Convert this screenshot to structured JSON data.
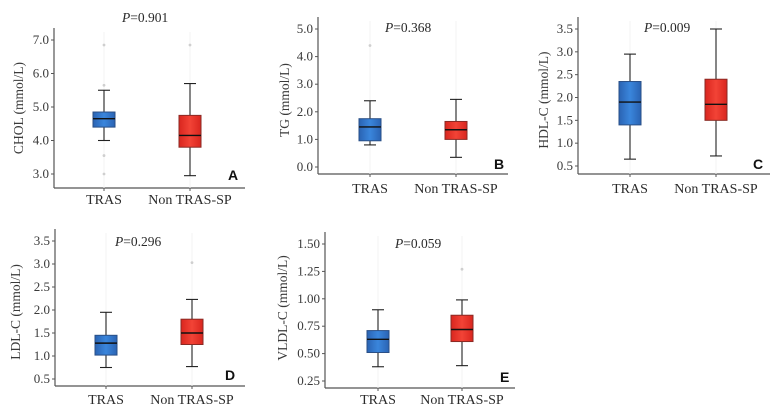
{
  "colors": {
    "TRAS": "#2f74c8",
    "Non TRAS-SP": "#e8322a",
    "outlier": "#cfcfcf",
    "axis": "#555555"
  },
  "chart_data": [
    {
      "type": "box",
      "panel": "A",
      "ylabel": "CHOL (mmol/L)",
      "annotation": "P=0.901",
      "p_value": "0.901",
      "ylim": [
        2.8,
        7.4
      ],
      "yticks": [
        3.0,
        4.0,
        5.0,
        6.0,
        7.0
      ],
      "ytick_labels": [
        "3.0",
        "4.0",
        "5.0",
        "6.0",
        "7.0"
      ],
      "categories": [
        "TRAS",
        "Non TRAS-SP"
      ],
      "series": [
        {
          "name": "TRAS",
          "whisker_low": 4.0,
          "q1": 4.4,
          "median": 4.65,
          "q3": 4.85,
          "whisker_high": 5.5,
          "outliers": [
            3.0,
            3.55,
            5.65,
            6.85
          ]
        },
        {
          "name": "Non TRAS-SP",
          "whisker_low": 2.95,
          "q1": 3.8,
          "median": 4.15,
          "q3": 4.75,
          "whisker_high": 5.7,
          "outliers": [
            6.85
          ]
        }
      ]
    },
    {
      "type": "box",
      "panel": "B",
      "ylabel": "TG (mmol/L)",
      "annotation": "P=0.368",
      "p_value": "0.368",
      "ylim": [
        -0.25,
        5.2
      ],
      "yticks": [
        0.0,
        1.0,
        2.0,
        3.0,
        4.0,
        5.0
      ],
      "ytick_labels": [
        "0.0",
        "1.0",
        "2.0",
        "3.0",
        "4.0",
        "5.0"
      ],
      "categories": [
        "TRAS",
        "Non TRAS-SP"
      ],
      "series": [
        {
          "name": "TRAS",
          "whisker_low": 0.8,
          "q1": 0.95,
          "median": 1.45,
          "q3": 1.75,
          "whisker_high": 2.4,
          "outliers": [
            4.4
          ]
        },
        {
          "name": "Non TRAS-SP",
          "whisker_low": 0.35,
          "q1": 1.0,
          "median": 1.35,
          "q3": 1.65,
          "whisker_high": 2.45,
          "outliers": []
        }
      ]
    },
    {
      "type": "box",
      "panel": "C",
      "ylabel": "HDL-C (mmol/L)",
      "annotation": "P=0.009",
      "p_value": "0.009",
      "ylim": [
        0.4,
        3.65
      ],
      "yticks": [
        0.5,
        1.0,
        1.5,
        2.0,
        2.5,
        3.0,
        3.5
      ],
      "ytick_labels": [
        "0.5",
        "1.0",
        "1.5",
        "2.0",
        "2.5",
        "3.0",
        "3.5"
      ],
      "categories": [
        "TRAS",
        "Non TRAS-SP"
      ],
      "series": [
        {
          "name": "TRAS",
          "whisker_low": 0.65,
          "q1": 1.4,
          "median": 1.9,
          "q3": 2.35,
          "whisker_high": 2.95,
          "outliers": []
        },
        {
          "name": "Non TRAS-SP",
          "whisker_low": 0.72,
          "q1": 1.5,
          "median": 1.85,
          "q3": 2.4,
          "whisker_high": 3.5,
          "outliers": []
        }
      ]
    },
    {
      "type": "box",
      "panel": "D",
      "ylabel": "LDL-C (mmol/L)",
      "annotation": "P=0.296",
      "p_value": "0.296",
      "ylim": [
        0.4,
        3.65
      ],
      "yticks": [
        0.5,
        1.0,
        1.5,
        2.0,
        2.5,
        3.0,
        3.5
      ],
      "ytick_labels": [
        "0.5",
        "1.0",
        "1.5",
        "2.0",
        "2.5",
        "3.0",
        "3.5"
      ],
      "categories": [
        "TRAS",
        "Non TRAS-SP"
      ],
      "series": [
        {
          "name": "TRAS",
          "whisker_low": 0.75,
          "q1": 1.02,
          "median": 1.28,
          "q3": 1.45,
          "whisker_high": 1.95,
          "outliers": []
        },
        {
          "name": "Non TRAS-SP",
          "whisker_low": 0.77,
          "q1": 1.25,
          "median": 1.5,
          "q3": 1.8,
          "whisker_high": 2.23,
          "outliers": [
            3.03
          ]
        }
      ]
    },
    {
      "type": "box",
      "panel": "E",
      "ylabel": "VLDL-C (mmol/L)",
      "annotation": "P=0.059",
      "p_value": "0.059",
      "ylim": [
        0.22,
        1.55
      ],
      "yticks": [
        0.25,
        0.5,
        0.75,
        1.0,
        1.25,
        1.5
      ],
      "ytick_labels": [
        "0.25",
        "0.50",
        "0.75",
        "1.00",
        "1.25",
        "1.50"
      ],
      "categories": [
        "TRAS",
        "Non TRAS-SP"
      ],
      "series": [
        {
          "name": "TRAS",
          "whisker_low": 0.38,
          "q1": 0.51,
          "median": 0.63,
          "q3": 0.71,
          "whisker_high": 0.9,
          "outliers": []
        },
        {
          "name": "Non TRAS-SP",
          "whisker_low": 0.39,
          "q1": 0.61,
          "median": 0.72,
          "q3": 0.85,
          "whisker_high": 0.99,
          "outliers": [
            1.27
          ]
        }
      ]
    }
  ]
}
